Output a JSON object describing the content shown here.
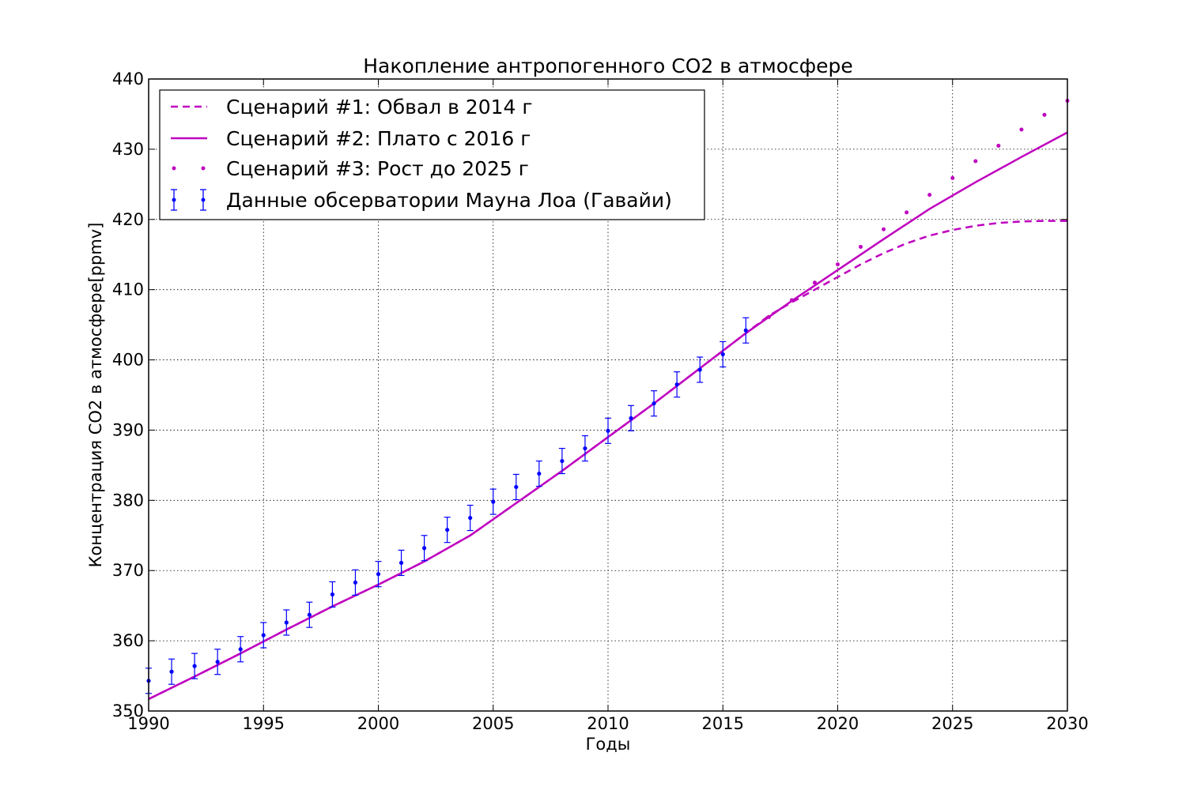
{
  "chart_data": {
    "type": "line",
    "title": "Накопление антропогенного CO2 в атмосфере",
    "xlabel": "Годы",
    "ylabel": "Концентрация CO2 в атмосфере[ppmv]",
    "xlim": [
      1990,
      2030
    ],
    "ylim": [
      350,
      440
    ],
    "x_ticks": [
      "1990",
      "1995",
      "2000",
      "2005",
      "2010",
      "2015",
      "2020",
      "2025",
      "2030"
    ],
    "y_ticks": [
      "350",
      "360",
      "370",
      "380",
      "390",
      "400",
      "410",
      "420",
      "430",
      "440"
    ],
    "grid": true,
    "legend_position": "top-left",
    "colors": {
      "scenario": "#bf00bf",
      "observations": "#0000ff"
    },
    "legend": {
      "s1": "Сценарий #1: Обвал в 2014 г",
      "s2": "Сценарий #2: Плато с 2016 г",
      "s3": "Сценарий #3: Рост до 2025 г",
      "obs": "Данные обсерватории Мауна Лоа (Гавайи)"
    },
    "series": [
      {
        "name": "Сценарий #1: Обвал в 2014 г",
        "style": "dashed",
        "x": [
          1990,
          1992,
          1994,
          1996,
          1998,
          2000,
          2002,
          2004,
          2006,
          2008,
          2010,
          2012,
          2014,
          2016,
          2017,
          2018,
          2019,
          2020,
          2021,
          2022,
          2023,
          2024,
          2025,
          2026,
          2027,
          2028,
          2029,
          2030
        ],
        "y": [
          351.7,
          354.9,
          358.2,
          361.6,
          364.9,
          368.0,
          371.3,
          375.0,
          379.6,
          384.2,
          389.0,
          393.8,
          398.8,
          403.8,
          406.3,
          408.2,
          410.0,
          411.8,
          413.6,
          415.2,
          416.6,
          417.7,
          418.5,
          419.1,
          419.5,
          419.7,
          419.8,
          419.8
        ]
      },
      {
        "name": "Сценарий #2: Плато с 2016 г",
        "style": "solid",
        "x": [
          1990,
          1992,
          1994,
          1996,
          1998,
          2000,
          2002,
          2004,
          2006,
          2008,
          2010,
          2012,
          2014,
          2016,
          2018,
          2020,
          2022,
          2024,
          2026,
          2028,
          2030
        ],
        "y": [
          351.7,
          354.9,
          358.2,
          361.6,
          364.9,
          368.0,
          371.3,
          375.0,
          379.6,
          384.2,
          389.0,
          393.8,
          398.8,
          403.8,
          408.4,
          412.8,
          417.2,
          421.5,
          425.3,
          428.9,
          432.4
        ]
      },
      {
        "name": "Сценарий #3: Рост до 2025 г",
        "style": "dotted",
        "x": [
          2017,
          2018,
          2019,
          2020,
          2021,
          2022,
          2023,
          2024,
          2025,
          2026,
          2027,
          2028,
          2029,
          2030
        ],
        "y": [
          406.1,
          408.5,
          411.0,
          413.6,
          416.1,
          418.6,
          421.0,
          423.5,
          425.9,
          428.3,
          430.5,
          432.8,
          434.9,
          436.9
        ]
      },
      {
        "name": "Данные обсерватории Мауна Лоа (Гавайи)",
        "style": "errorbar",
        "error": 1.8,
        "x": [
          1990,
          1991,
          1992,
          1993,
          1994,
          1995,
          1996,
          1997,
          1998,
          1999,
          2000,
          2001,
          2002,
          2003,
          2004,
          2005,
          2006,
          2007,
          2008,
          2009,
          2010,
          2011,
          2012,
          2013,
          2014,
          2015,
          2016
        ],
        "y": [
          354.3,
          355.6,
          356.4,
          357.0,
          358.8,
          360.8,
          362.6,
          363.7,
          366.6,
          368.3,
          369.5,
          371.1,
          373.2,
          375.8,
          377.5,
          379.8,
          381.9,
          383.8,
          385.6,
          387.4,
          389.9,
          391.7,
          393.8,
          396.5,
          398.6,
          400.8,
          404.2
        ]
      }
    ]
  }
}
